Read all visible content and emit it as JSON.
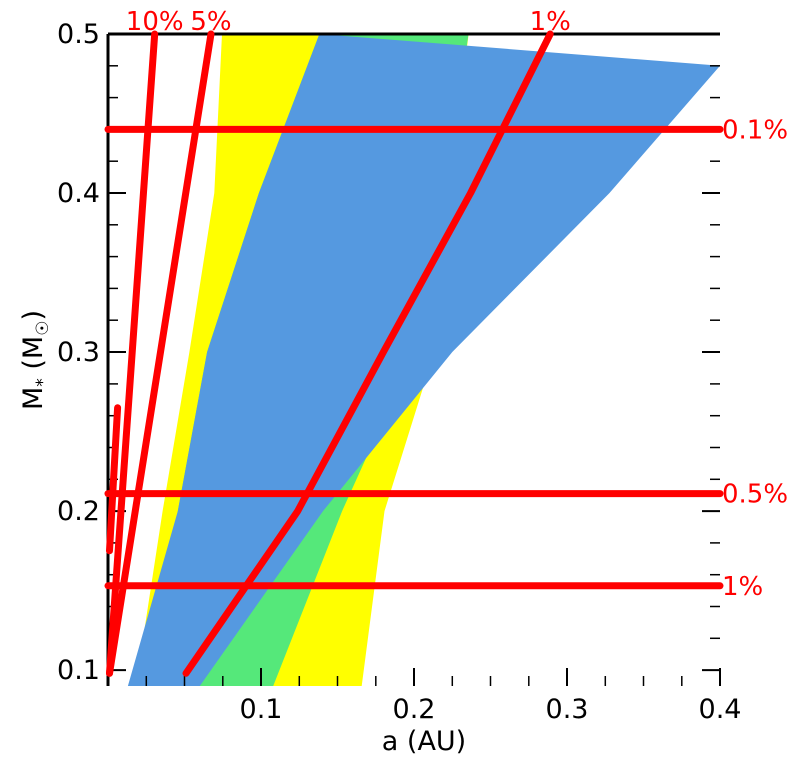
{
  "chart_data": {
    "type": "area",
    "xlabel": "a (AU)",
    "ylabel_main": "M",
    "ylabel_sub1": "*",
    "ylabel_mid": " (M",
    "ylabel_sub2": "☉",
    "ylabel_end": ")",
    "xlim": [
      0.0,
      0.4
    ],
    "ylim": [
      0.09,
      0.5
    ],
    "x_ticks": [
      {
        "value": 0.1,
        "label": "0.1"
      },
      {
        "value": 0.2,
        "label": "0.2"
      },
      {
        "value": 0.3,
        "label": "0.3"
      },
      {
        "value": 0.4,
        "label": "0.4"
      }
    ],
    "y_ticks": [
      {
        "value": 0.1,
        "label": "0.1"
      },
      {
        "value": 0.2,
        "label": "0.2"
      },
      {
        "value": 0.3,
        "label": "0.3"
      },
      {
        "value": 0.4,
        "label": "0.4"
      },
      {
        "value": 0.5,
        "label": "0.5"
      }
    ],
    "colors": {
      "yellow": "#ffff00",
      "green": "#55e87a",
      "blue": "#5599e0",
      "contour": "#ff0000",
      "axis": "#000000"
    },
    "regions": [
      {
        "color": "yellow",
        "left": [
          [
            0.0182,
            0.09
          ],
          [
            0.0357,
            0.2
          ],
          [
            0.0532,
            0.3
          ],
          [
            0.0695,
            0.4
          ],
          [
            0.0745,
            0.5
          ]
        ],
        "right": [
          [
            0.1658,
            0.09
          ],
          [
            0.1807,
            0.2
          ],
          [
            0.2132,
            0.3
          ],
          [
            0.2232,
            0.4
          ],
          [
            0.2357,
            0.5
          ]
        ]
      },
      {
        "color": "green",
        "left": [
          [
            0.03,
            0.09
          ],
          [
            0.0456,
            0.2
          ],
          [
            0.0648,
            0.3
          ],
          [
            0.0986,
            0.4
          ],
          [
            0.1382,
            0.5
          ]
        ],
        "right": [
          [
            0.108,
            0.09
          ],
          [
            0.153,
            0.2
          ],
          [
            0.2,
            0.3
          ],
          [
            0.2206,
            0.4
          ],
          [
            0.2356,
            0.5
          ]
        ]
      },
      {
        "color": "blue",
        "left": [
          [
            0.013,
            0.09
          ],
          [
            0.0456,
            0.2
          ],
          [
            0.0648,
            0.3
          ],
          [
            0.0986,
            0.4
          ],
          [
            0.1382,
            0.5
          ]
        ],
        "right": [
          [
            0.06,
            0.09
          ],
          [
            0.1405,
            0.2
          ],
          [
            0.225,
            0.3
          ],
          [
            0.3278,
            0.4
          ],
          [
            0.4,
            0.48
          ]
        ]
      }
    ],
    "contours": [
      {
        "label": "10%",
        "label_position": "top",
        "points": [
          [
            0.001,
            0.098
          ],
          [
            0.0305,
            0.5
          ]
        ]
      },
      {
        "label": "5%",
        "label_position": "top",
        "points": [
          [
            0.001,
            0.098
          ],
          [
            0.0673,
            0.5
          ]
        ]
      },
      {
        "label": "1%",
        "label_position": "top",
        "points": [
          [
            0.051,
            0.098
          ],
          [
            0.124,
            0.2
          ],
          [
            0.18,
            0.3
          ],
          [
            0.237,
            0.4
          ],
          [
            0.289,
            0.5
          ]
        ]
      },
      {
        "label": "0.1%",
        "label_position": "right",
        "points": [
          [
            0.0,
            0.44
          ],
          [
            0.4,
            0.44
          ]
        ]
      },
      {
        "label": "0.5%",
        "label_position": "right",
        "points": [
          [
            0.0,
            0.211
          ],
          [
            0.4,
            0.211
          ]
        ]
      },
      {
        "label": "1%",
        "label_position": "right",
        "points": [
          [
            0.0,
            0.153
          ],
          [
            0.4,
            0.153
          ]
        ]
      }
    ],
    "short_contour": {
      "points": [
        [
          0.001,
          0.175
        ],
        [
          0.0063,
          0.265
        ]
      ]
    }
  }
}
